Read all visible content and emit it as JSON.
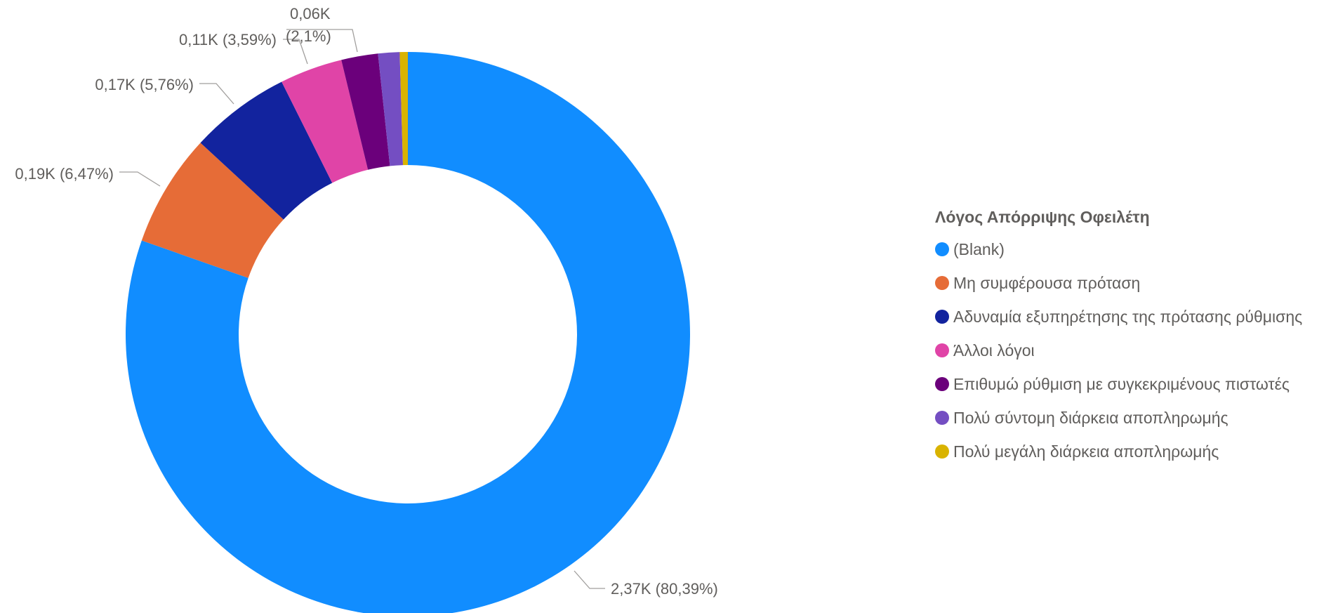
{
  "chart_data": {
    "type": "pie",
    "donut": true,
    "legend_title": "Λόγος Απόρριψης Οφειλέτη",
    "legend_position": "right",
    "series": [
      {
        "name": "(Blank)",
        "percent": 80.39,
        "label": "2,37K (80,39%)",
        "color": "#118DFF"
      },
      {
        "name": "Μη συμφέρουσα πρόταση",
        "percent": 6.47,
        "label": "0,19K (6,47%)",
        "color": "#E66C37"
      },
      {
        "name": "Αδυναμία εξυπηρέτησης της πρότασης ρύθμισης",
        "percent": 5.76,
        "label": "0,17K (5,76%)",
        "color": "#12239E"
      },
      {
        "name": "Άλλοι λόγοι",
        "percent": 3.59,
        "label": "0,11K (3,59%)",
        "color": "#E044A7"
      },
      {
        "name": "Επιθυμώ ρύθμιση με συγκεκριμένους πιστωτές",
        "percent": 2.1,
        "label_line1": "0,06K",
        "label_line2": "(2,1%)",
        "color": "#6B007B"
      },
      {
        "name": "Πολύ σύντομη διάρκεια αποπληρωμής",
        "percent": 1.23,
        "color": "#744EC2"
      },
      {
        "name": "Πολύ μεγάλη διάρκεια αποπληρωμής",
        "percent": 0.46,
        "color": "#D9B300"
      }
    ]
  }
}
